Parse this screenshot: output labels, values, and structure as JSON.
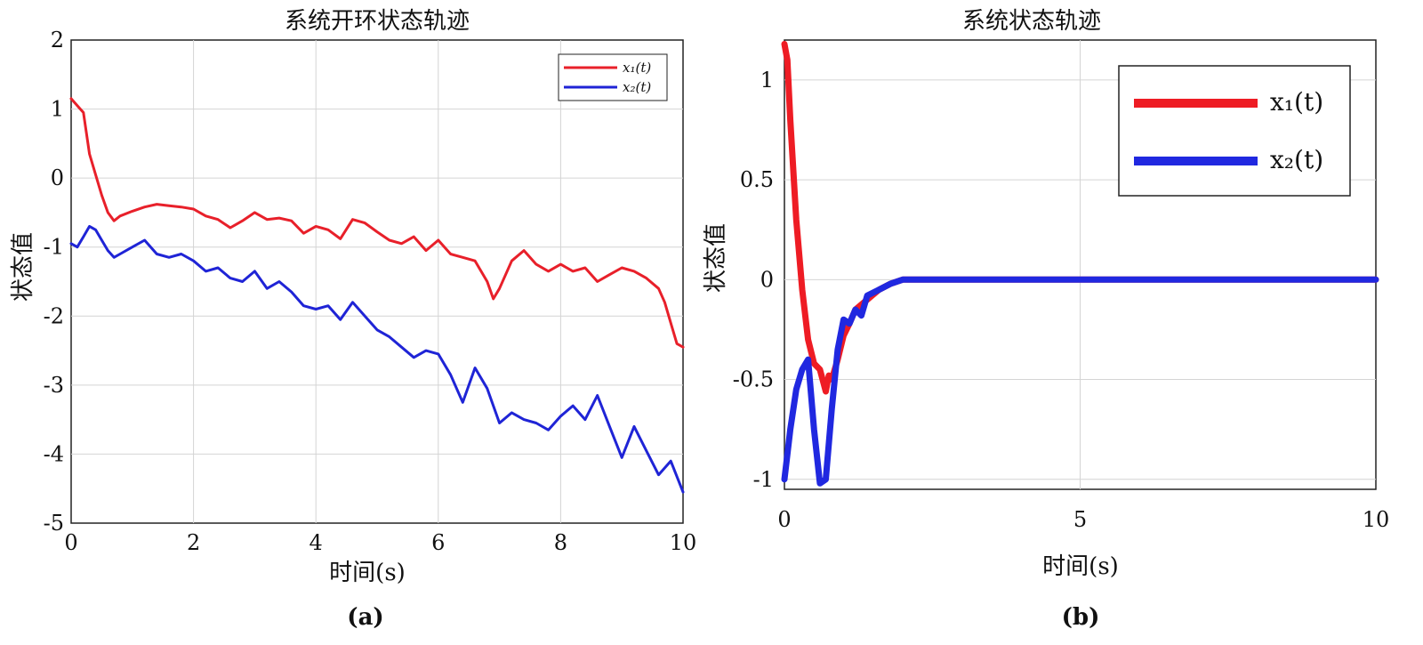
{
  "chart_data": [
    {
      "type": "line",
      "caption": "(a)",
      "title": "系统开环状态轨迹",
      "xlabel": "时间(s)",
      "ylabel": "状态值",
      "xlim": [
        0,
        10
      ],
      "ylim": [
        -5,
        2
      ],
      "xticks": [
        "0",
        "2",
        "4",
        "6",
        "8",
        "10"
      ],
      "yticks": [
        "2",
        "1",
        "0",
        "-1",
        "-2",
        "-3",
        "-4",
        "-5"
      ],
      "grid": true,
      "legend": "top-right",
      "series": [
        {
          "name": "x₁(t)",
          "color": "#e8202a",
          "x": [
            0,
            0.1,
            0.2,
            0.3,
            0.4,
            0.5,
            0.6,
            0.7,
            0.8,
            1.0,
            1.2,
            1.4,
            1.6,
            1.8,
            2.0,
            2.2,
            2.4,
            2.6,
            2.8,
            3.0,
            3.2,
            3.4,
            3.6,
            3.8,
            4.0,
            4.2,
            4.4,
            4.6,
            4.8,
            5.0,
            5.2,
            5.4,
            5.6,
            5.8,
            6.0,
            6.2,
            6.4,
            6.6,
            6.8,
            6.9,
            7.0,
            7.2,
            7.4,
            7.6,
            7.8,
            8.0,
            8.2,
            8.4,
            8.6,
            8.8,
            9.0,
            9.2,
            9.4,
            9.6,
            9.7,
            9.8,
            9.9,
            10.0
          ],
          "y": [
            1.15,
            1.05,
            0.95,
            0.35,
            0.05,
            -0.25,
            -0.5,
            -0.62,
            -0.55,
            -0.48,
            -0.42,
            -0.38,
            -0.4,
            -0.42,
            -0.45,
            -0.55,
            -0.6,
            -0.72,
            -0.62,
            -0.5,
            -0.6,
            -0.58,
            -0.62,
            -0.8,
            -0.7,
            -0.75,
            -0.88,
            -0.6,
            -0.65,
            -0.78,
            -0.9,
            -0.95,
            -0.85,
            -1.05,
            -0.9,
            -1.1,
            -1.15,
            -1.2,
            -1.5,
            -1.75,
            -1.6,
            -1.2,
            -1.05,
            -1.25,
            -1.35,
            -1.25,
            -1.35,
            -1.3,
            -1.5,
            -1.4,
            -1.3,
            -1.35,
            -1.45,
            -1.6,
            -1.8,
            -2.1,
            -2.4,
            -2.45
          ]
        },
        {
          "name": "x₂(t)",
          "color": "#1f24d6",
          "x": [
            0,
            0.1,
            0.2,
            0.3,
            0.4,
            0.5,
            0.6,
            0.7,
            0.8,
            1.0,
            1.2,
            1.4,
            1.6,
            1.8,
            2.0,
            2.2,
            2.4,
            2.6,
            2.8,
            3.0,
            3.2,
            3.4,
            3.6,
            3.8,
            4.0,
            4.2,
            4.4,
            4.6,
            4.8,
            5.0,
            5.2,
            5.4,
            5.6,
            5.8,
            6.0,
            6.2,
            6.4,
            6.6,
            6.8,
            7.0,
            7.2,
            7.4,
            7.6,
            7.8,
            8.0,
            8.2,
            8.4,
            8.6,
            8.8,
            9.0,
            9.2,
            9.4,
            9.6,
            9.8,
            10.0
          ],
          "y": [
            -0.95,
            -1.0,
            -0.85,
            -0.7,
            -0.75,
            -0.9,
            -1.05,
            -1.15,
            -1.1,
            -1.0,
            -0.9,
            -1.1,
            -1.15,
            -1.1,
            -1.2,
            -1.35,
            -1.3,
            -1.45,
            -1.5,
            -1.35,
            -1.6,
            -1.5,
            -1.65,
            -1.85,
            -1.9,
            -1.85,
            -2.05,
            -1.8,
            -2.0,
            -2.2,
            -2.3,
            -2.45,
            -2.6,
            -2.5,
            -2.55,
            -2.85,
            -3.25,
            -2.75,
            -3.05,
            -3.55,
            -3.4,
            -3.5,
            -3.55,
            -3.65,
            -3.45,
            -3.3,
            -3.5,
            -3.15,
            -3.6,
            -4.05,
            -3.6,
            -3.95,
            -4.3,
            -4.1,
            -4.55
          ]
        }
      ]
    },
    {
      "type": "line",
      "caption": "(b)",
      "title": "系统状态轨迹",
      "xlabel": "时间(s)",
      "ylabel": "状态值",
      "xlim": [
        0,
        10
      ],
      "ylim": [
        -1.05,
        1.2
      ],
      "xticks": [
        "0",
        "5",
        "10"
      ],
      "yticks": [
        "1",
        "0.5",
        "0",
        "-0.5",
        "-1"
      ],
      "grid": true,
      "legend": "top-right",
      "series": [
        {
          "name": "x₁(t)",
          "color": "#ee1c24",
          "x": [
            0,
            0.05,
            0.1,
            0.2,
            0.3,
            0.4,
            0.5,
            0.6,
            0.7,
            0.75,
            0.8,
            0.9,
            1.0,
            1.1,
            1.2,
            1.4,
            1.6,
            1.8,
            2.0,
            2.5,
            3.0,
            4.0,
            6.0,
            8.0,
            10.0
          ],
          "y": [
            1.18,
            1.1,
            0.8,
            0.3,
            -0.05,
            -0.3,
            -0.42,
            -0.45,
            -0.56,
            -0.48,
            -0.5,
            -0.4,
            -0.28,
            -0.22,
            -0.15,
            -0.1,
            -0.05,
            -0.02,
            0.0,
            0.0,
            0.0,
            0.0,
            0.0,
            0.0,
            0.0
          ]
        },
        {
          "name": "x₂(t)",
          "color": "#2028e0",
          "x": [
            0,
            0.1,
            0.2,
            0.3,
            0.4,
            0.5,
            0.6,
            0.7,
            0.8,
            0.9,
            1.0,
            1.1,
            1.2,
            1.3,
            1.4,
            1.6,
            1.8,
            2.0,
            2.5,
            3.0,
            4.0,
            6.0,
            8.0,
            10.0
          ],
          "y": [
            -1.0,
            -0.75,
            -0.55,
            -0.45,
            -0.4,
            -0.75,
            -1.02,
            -1.0,
            -0.65,
            -0.35,
            -0.2,
            -0.22,
            -0.15,
            -0.18,
            -0.08,
            -0.05,
            -0.02,
            0.0,
            0.0,
            0.0,
            0.0,
            0.0,
            0.0,
            0.0
          ]
        }
      ]
    }
  ]
}
